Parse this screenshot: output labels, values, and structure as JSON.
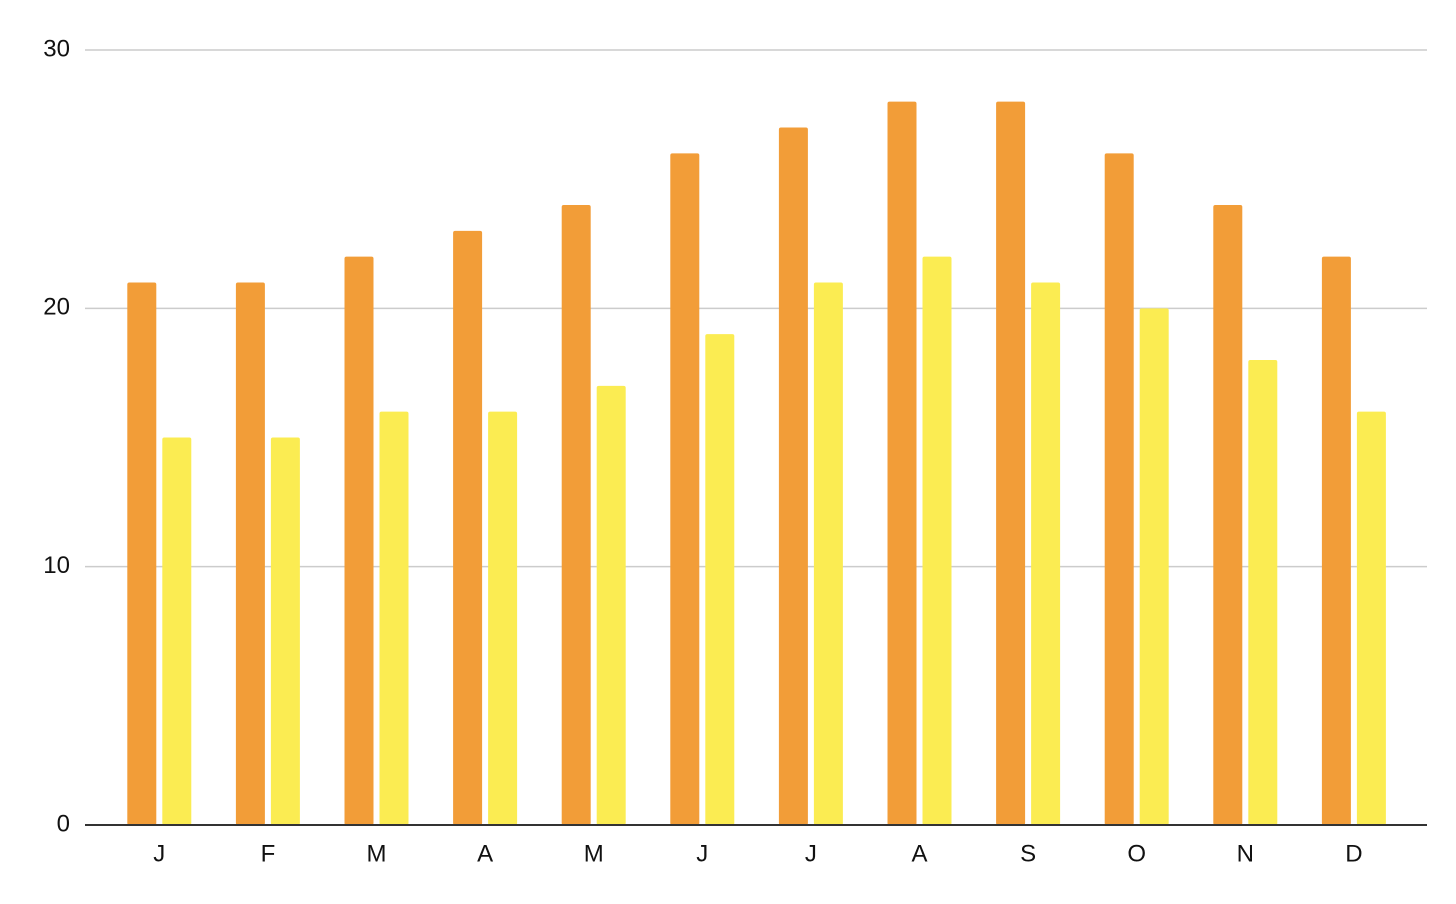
{
  "chart_data": {
    "type": "bar",
    "categories": [
      "J",
      "F",
      "M",
      "A",
      "M",
      "J",
      "J",
      "A",
      "S",
      "O",
      "N",
      "D"
    ],
    "series": [
      {
        "color": "#f29d38",
        "values": [
          21,
          21,
          22,
          23,
          24,
          26,
          27,
          28,
          28,
          26,
          24,
          22
        ]
      },
      {
        "color": "#fbec52",
        "values": [
          15,
          15,
          16,
          16,
          17,
          19,
          21,
          22,
          21,
          20,
          18,
          16
        ]
      }
    ],
    "ylim": [
      0,
      30
    ],
    "yticks": [
      0,
      10,
      20,
      30
    ],
    "grid": true
  }
}
